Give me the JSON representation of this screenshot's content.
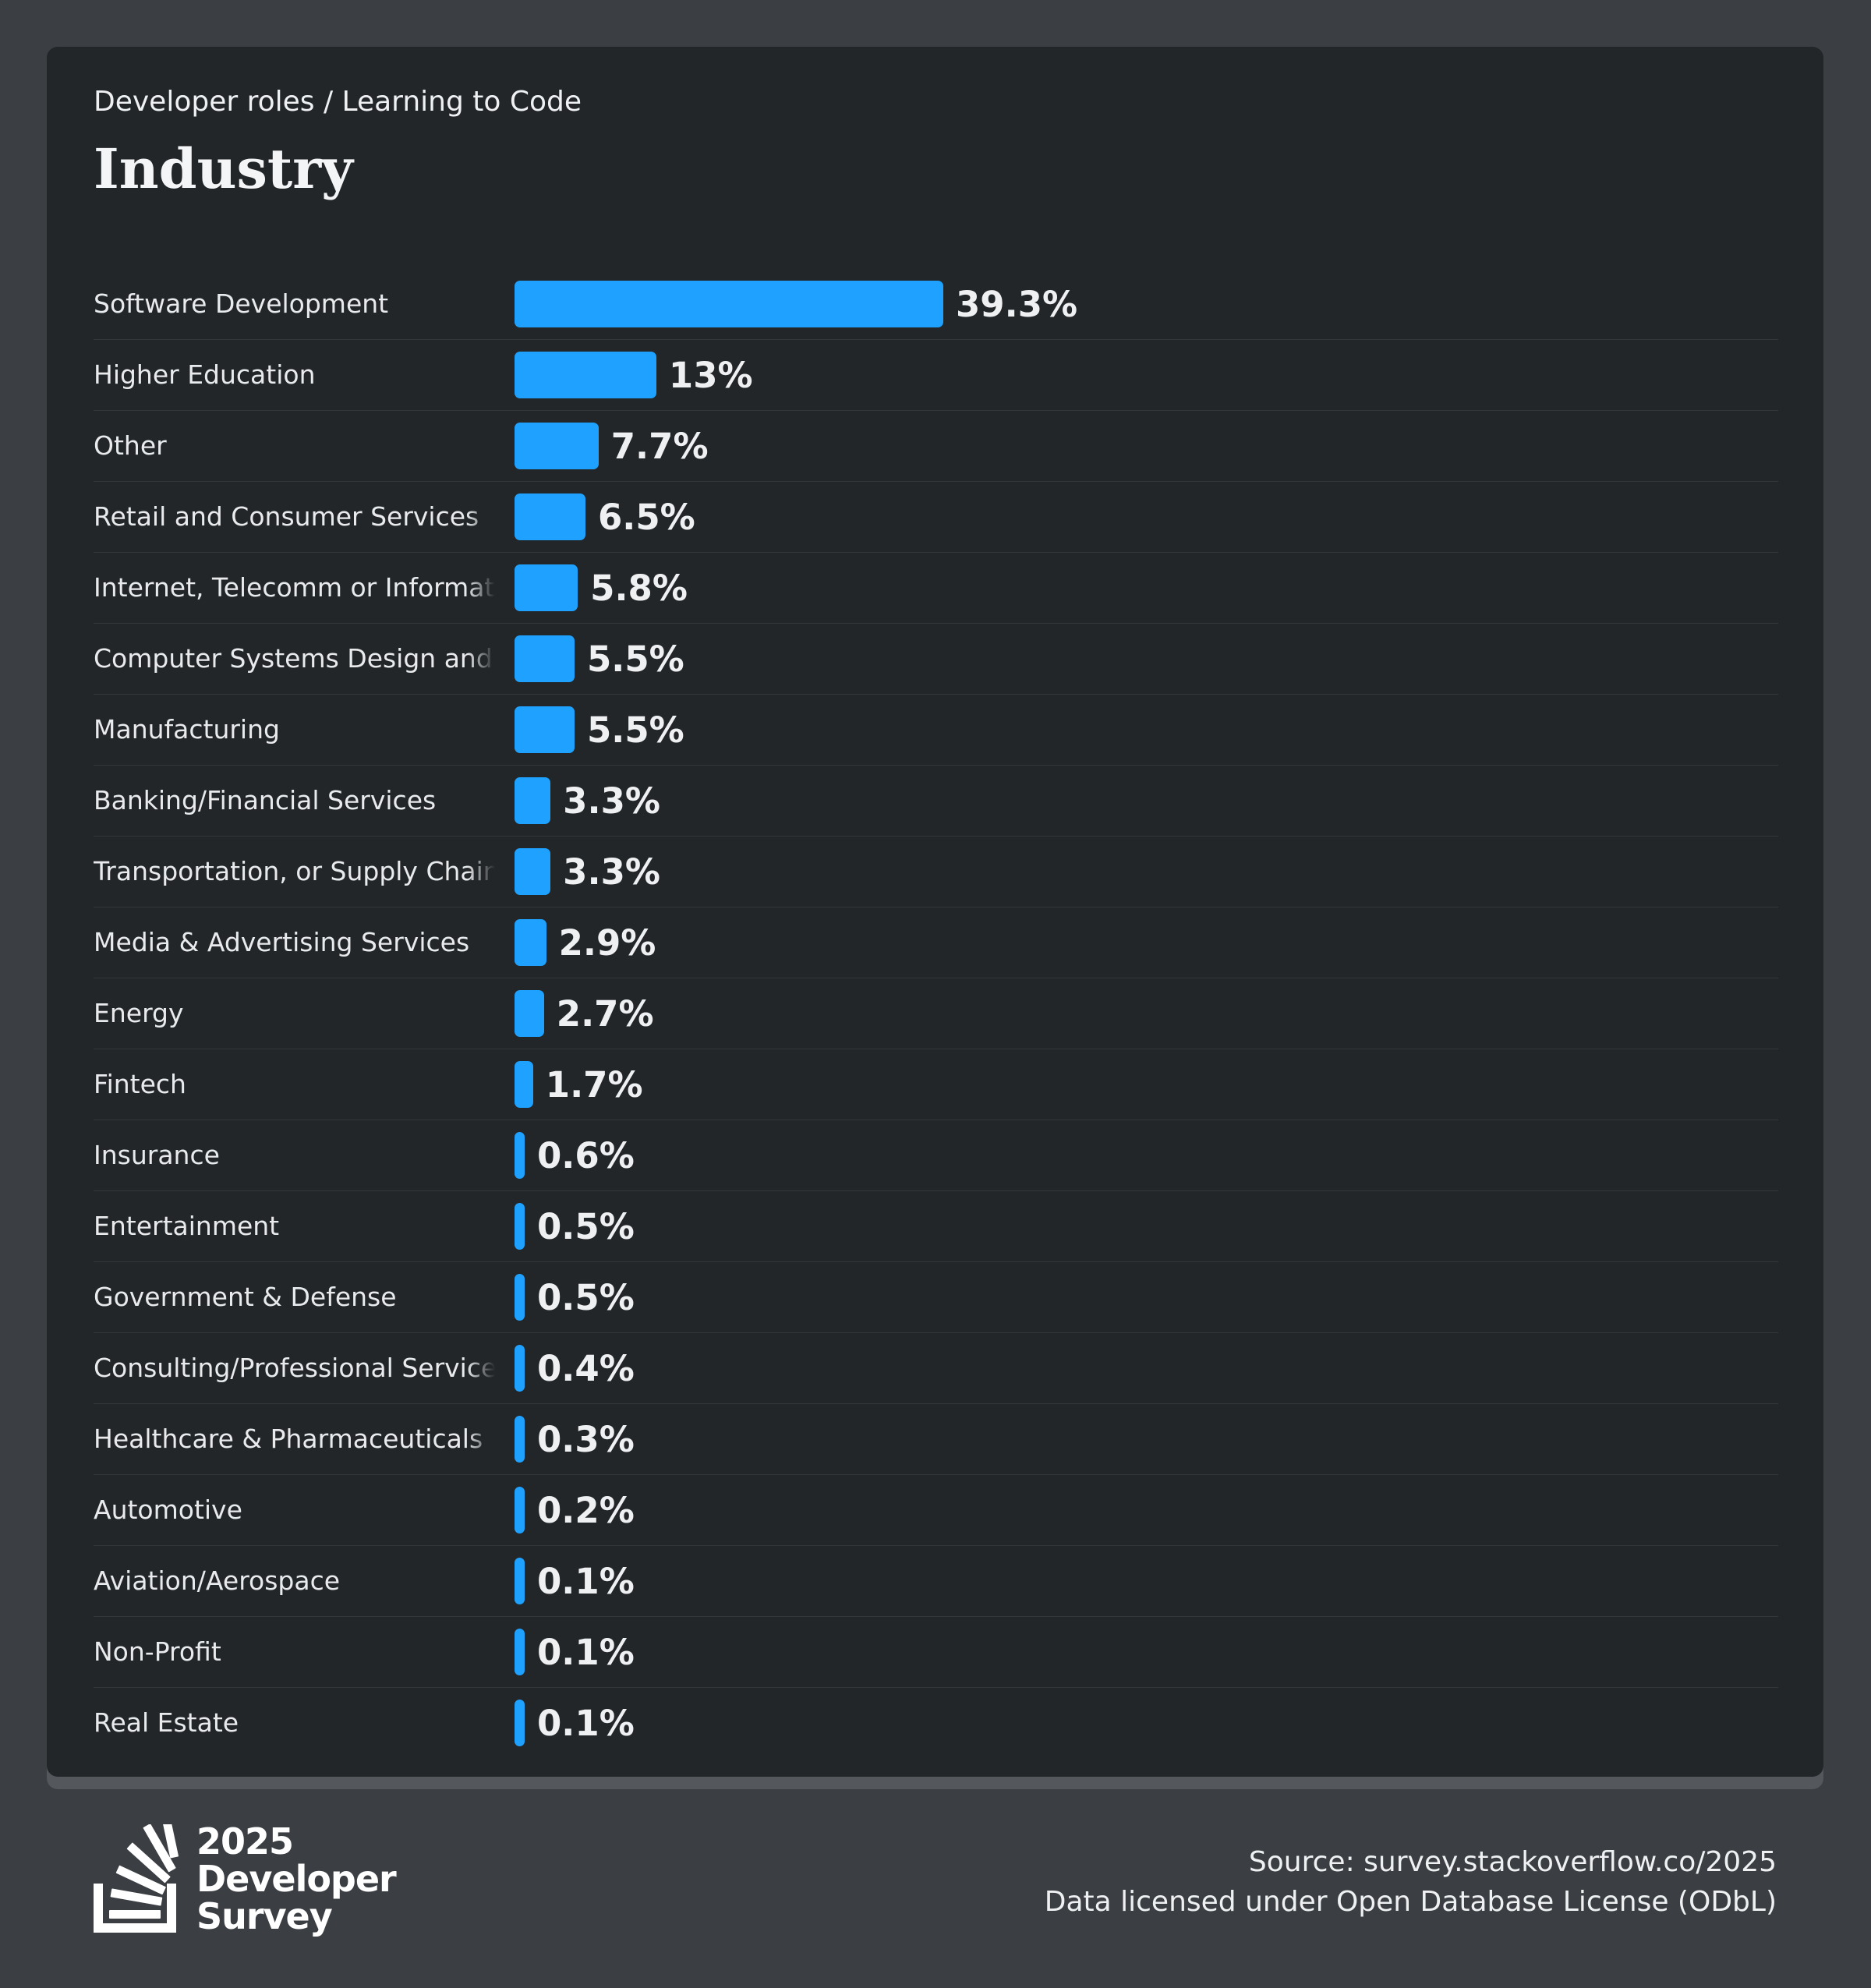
{
  "header": {
    "breadcrumb": "Developer roles / Learning to Code",
    "title": "Industry"
  },
  "chart_data": {
    "type": "bar",
    "orientation": "horizontal",
    "max_value": 39.3,
    "bar_color": "#1fa1ff",
    "categories": [
      "Software Development",
      "Higher Education",
      "Other",
      "Retail and Consumer Services",
      "Internet, Telecomm or Information Services",
      "Computer Systems Design and Services",
      "Manufacturing",
      "Banking/Financial Services",
      "Transportation, or Supply Chain",
      "Media & Advertising Services",
      "Energy",
      "Fintech",
      "Insurance",
      "Entertainment",
      "Government & Defense",
      "Consulting/Professional Services",
      "Healthcare & Pharmaceuticals",
      "Automotive",
      "Aviation/Aerospace",
      "Non-Profit",
      "Real Estate"
    ],
    "values": [
      39.3,
      13,
      7.7,
      6.5,
      5.8,
      5.5,
      5.5,
      3.3,
      3.3,
      2.9,
      2.7,
      1.7,
      0.6,
      0.5,
      0.5,
      0.4,
      0.3,
      0.2,
      0.1,
      0.1,
      0.1
    ],
    "value_labels": [
      "39.3%",
      "13%",
      "7.7%",
      "6.5%",
      "5.8%",
      "5.5%",
      "5.5%",
      "3.3%",
      "3.3%",
      "2.9%",
      "2.7%",
      "1.7%",
      "0.6%",
      "0.5%",
      "0.5%",
      "0.4%",
      "0.3%",
      "0.2%",
      "0.1%",
      "0.1%",
      "0.1%"
    ]
  },
  "branding": {
    "year": "2025",
    "line1": "Developer",
    "line2": "Survey"
  },
  "footer": {
    "source": "Source: survey.stackoverflow.co/2025",
    "license": "Data licensed under Open Database License (ODbL)"
  }
}
